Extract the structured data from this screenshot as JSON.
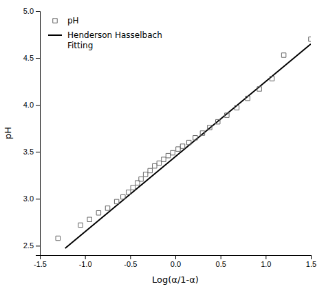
{
  "chart_data": {
    "type": "scatter",
    "xlabel": "Log(α/1-α)",
    "ylabel": "pH",
    "xlim": [
      -1.5,
      1.5
    ],
    "ylim": [
      2.4,
      5.0
    ],
    "xticks": [
      -1.5,
      {
        "value": -1.0,
        "label": "-1.0"
      },
      -0.5,
      {
        "value": 0.0,
        "label": "0.0"
      },
      0.5,
      {
        "value": 1.0,
        "label": "1.0"
      },
      1.5
    ],
    "yticks": [
      2.5,
      {
        "value": 3.0,
        "label": "3.0"
      },
      3.5,
      {
        "value": 4.0,
        "label": "4.0"
      },
      4.5,
      {
        "value": 5.0,
        "label": "5.0"
      }
    ],
    "grid": false,
    "legend": "upper left",
    "series": [
      {
        "name": "pH",
        "type": "scatter",
        "marker": "square",
        "color": "#666666",
        "x": [
          -1.3,
          -1.05,
          -0.95,
          -0.85,
          -0.75,
          -0.65,
          -0.58,
          -0.52,
          -0.47,
          -0.42,
          -0.38,
          -0.33,
          -0.28,
          -0.23,
          -0.18,
          -0.13,
          -0.08,
          -0.03,
          0.03,
          0.08,
          0.15,
          0.22,
          0.3,
          0.38,
          0.47,
          0.57,
          0.68,
          0.8,
          0.93,
          1.07,
          1.2,
          1.5
        ],
        "values": [
          2.58,
          2.72,
          2.78,
          2.85,
          2.9,
          2.97,
          3.02,
          3.07,
          3.12,
          3.17,
          3.21,
          3.26,
          3.3,
          3.35,
          3.38,
          3.42,
          3.46,
          3.49,
          3.53,
          3.56,
          3.6,
          3.65,
          3.7,
          3.76,
          3.82,
          3.89,
          3.97,
          4.07,
          4.17,
          4.28,
          4.53,
          4.7
        ]
      },
      {
        "name": "Henderson Hasselbach\nFitting",
        "type": "line",
        "line_style": "solid",
        "color": "#000000",
        "x": [
          -1.22,
          1.5
        ],
        "values": [
          2.474,
          4.65
        ]
      }
    ]
  }
}
